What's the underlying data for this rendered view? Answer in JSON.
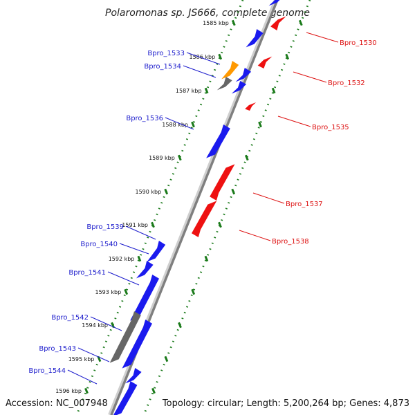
{
  "title": "Polaromonas sp. JS666, complete genome",
  "footer": {
    "accession": "Accession: NC_007948",
    "summary": "Topology: circular; Length: 5,200,264 bp; Genes: 4,873"
  },
  "colors": {
    "forward_gene": "#1a1aee",
    "reverse_gene": "#ee1111",
    "rna_gene": "#ff9900",
    "pseudo_gene": "#666666",
    "backbone": "#7f7f7f",
    "scale_dots": "#1a7a1a",
    "forward_label": "#1c1ccc",
    "reverse_label": "#dd1111"
  },
  "scale_ticks": [
    "1585 kbp",
    "1586 kbp",
    "1587 kbp",
    "1588 kbp",
    "1589 kbp",
    "1590 kbp",
    "1591 kbp",
    "1592 kbp",
    "1593 kbp",
    "1594 kbp",
    "1595 kbp",
    "1596 kbp"
  ],
  "forward_labels": [
    "Bpro_1533",
    "Bpro_1534",
    "Bpro_1536",
    "Bpro_1539",
    "Bpro_1540",
    "Bpro_1541",
    "Bpro_1542",
    "Bpro_1543",
    "Bpro_1544"
  ],
  "reverse_labels": [
    "Bpro_1530",
    "Bpro_1532",
    "Bpro_1535",
    "Bpro_1537",
    "Bpro_1538"
  ]
}
